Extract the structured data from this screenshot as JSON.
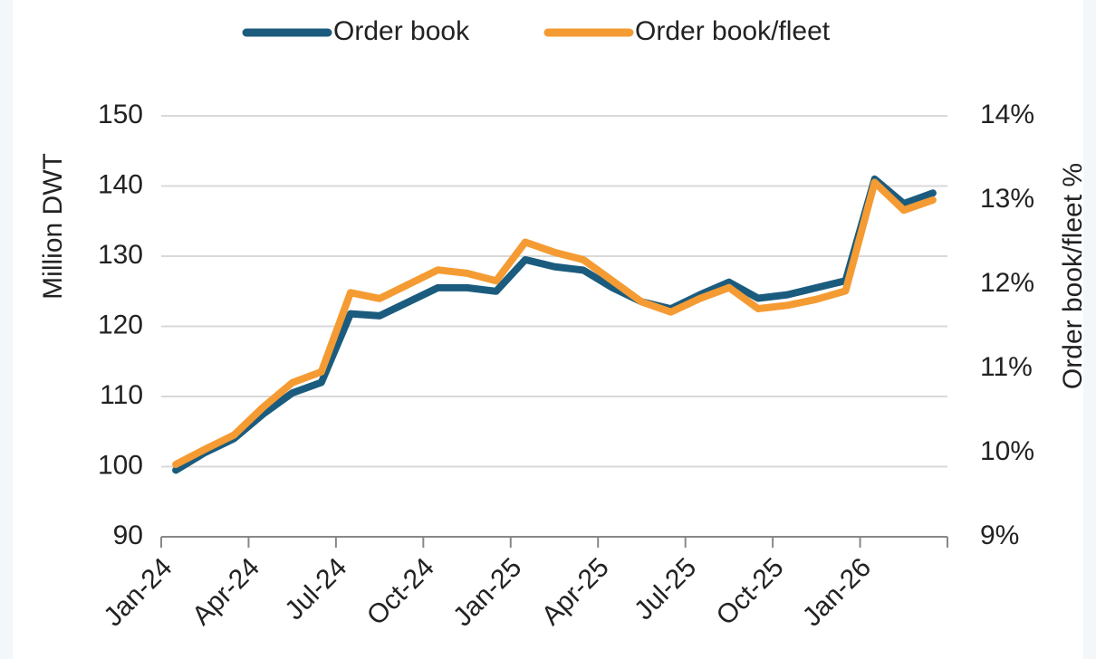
{
  "chart_data": {
    "type": "line",
    "categories": [
      "Jan-24",
      null,
      null,
      "Apr-24",
      null,
      null,
      "Jul-24",
      null,
      null,
      "Oct-24",
      null,
      null,
      "Jan-25",
      null,
      null,
      "Apr-25",
      null,
      null,
      "Jul-25",
      null,
      null,
      "Oct-25",
      null,
      null,
      "Jan-26",
      null,
      null
    ],
    "series": [
      {
        "name": "Order book",
        "color": "#1b5c7e",
        "axis": "y",
        "values": [
          99.5,
          102,
          104,
          107.5,
          110.5,
          112,
          121.8,
          121.5,
          123.5,
          125.5,
          125.5,
          125,
          129.5,
          128.5,
          128,
          125.5,
          123.5,
          122.5,
          124.5,
          126.3,
          124,
          124.5,
          125.5,
          126.5,
          141,
          137.5,
          139
        ]
      },
      {
        "name": "Order book/fleet",
        "color": "#f59b33",
        "axis": "y2",
        "values": [
          9.86,
          10.04,
          10.21,
          10.54,
          10.83,
          10.96,
          11.9,
          11.83,
          12.0,
          12.17,
          12.13,
          12.04,
          12.5,
          12.38,
          12.29,
          12.04,
          11.79,
          11.67,
          11.83,
          11.96,
          11.71,
          11.75,
          11.82,
          11.92,
          13.21,
          12.88,
          13.0
        ]
      }
    ],
    "ylabel": "Million DWT",
    "y2label": "Order book/fleet %",
    "ylim": [
      90,
      150
    ],
    "yticks": [
      90,
      100,
      110,
      120,
      130,
      140,
      150
    ],
    "y2lim": [
      9,
      14
    ],
    "y2ticks": [
      {
        "value": 9,
        "label": "9%"
      },
      {
        "value": 10,
        "label": "10%"
      },
      {
        "value": 11,
        "label": "11%"
      },
      {
        "value": 12,
        "label": "12%"
      },
      {
        "value": 13,
        "label": "13%"
      },
      {
        "value": 14,
        "label": "14%"
      }
    ],
    "grid": true,
    "legend": "top"
  }
}
